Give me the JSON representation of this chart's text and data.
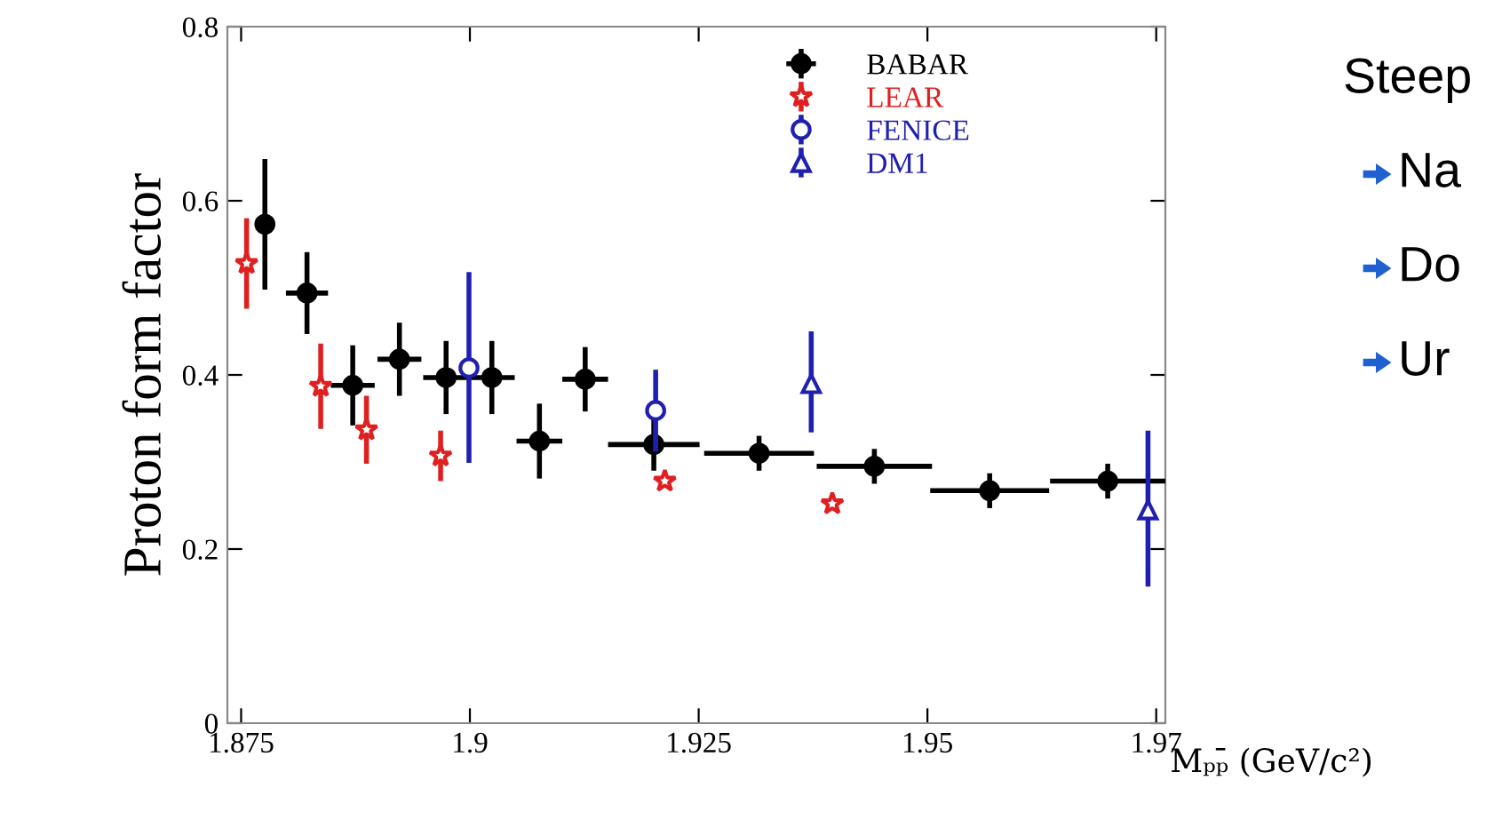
{
  "chart_data": {
    "type": "scatter",
    "ylabel": "Proton form factor",
    "xlabel": "Mₚₚ̄ (GeV/c²)",
    "xlim": [
      1.8735,
      1.976
    ],
    "ylim": [
      0,
      0.8
    ],
    "xticks": [
      1.875,
      1.9,
      1.925,
      1.95,
      {
        "value": 1.975,
        "label": "1.97"
      }
    ],
    "yticks": [
      0,
      0.2,
      0.4,
      0.6,
      0.8
    ],
    "grid": false,
    "legend": "top right",
    "series": [
      {
        "name": "BABAR",
        "color": "#000000",
        "marker": "circle",
        "x": [
          1.8776,
          1.8822,
          1.8872,
          1.8923,
          1.8974,
          1.9024,
          1.9076,
          1.9126,
          1.9201,
          1.9316,
          1.9442,
          1.9568,
          1.9697
        ],
        "values": [
          0.573,
          0.494,
          0.388,
          0.418,
          0.397,
          0.397,
          0.324,
          0.395,
          0.32,
          0.31,
          0.295,
          0.267,
          0.278
        ],
        "errors": [
          0.075,
          0.047,
          0.046,
          0.042,
          0.042,
          0.042,
          0.043,
          0.037,
          0.03,
          0.02,
          0.02,
          0.02,
          0.02
        ],
        "xerrors": [
          0.001,
          0.0023,
          0.0024,
          0.0024,
          0.0025,
          0.0025,
          0.0025,
          0.0025,
          0.005,
          0.006,
          0.0063,
          0.0065,
          0.0063
        ]
      },
      {
        "name": "LEAR",
        "color": "#e02020",
        "marker": "star",
        "x": [
          1.8756,
          1.8837,
          1.8887,
          1.8968,
          1.9213,
          1.9396
        ],
        "values": [
          0.528,
          0.387,
          0.337,
          0.307,
          0.278,
          0.252
        ],
        "errors": [
          0.052,
          0.049,
          0.039,
          0.029,
          null,
          null
        ]
      },
      {
        "name": "FENICE",
        "color": "#2020b0",
        "marker": "circle",
        "x": [
          1.8999,
          1.9203
        ],
        "values": [
          0.408,
          0.359
        ],
        "errors": [
          [
            0.299,
            0.518
          ],
          0.047
        ]
      },
      {
        "name": "DM1",
        "color": "#2020b0",
        "marker": "triangle",
        "x": [
          1.9373,
          1.9741
        ],
        "values": [
          0.39,
          0.245
        ],
        "errors": [
          [
            0.334,
            0.45
          ],
          [
            0.157,
            0.336
          ]
        ]
      }
    ],
    "annotations": [
      "Steep",
      "Na",
      "Do",
      "Ur"
    ]
  }
}
